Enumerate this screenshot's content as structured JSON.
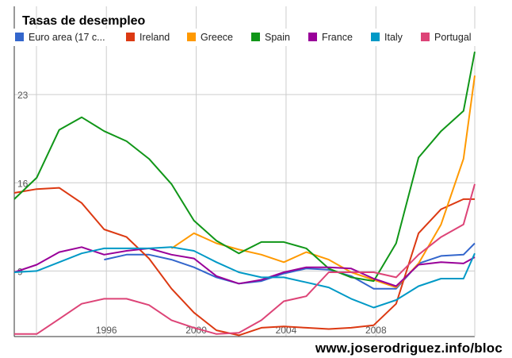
{
  "footer": {
    "url": "www.joserodriguez.info/bloc"
  },
  "chart_data": {
    "type": "line",
    "title": "Tasas de desempleo",
    "xlabel": "",
    "ylabel": "",
    "xlim": [
      1991.9,
      2012.4
    ],
    "ylim": [
      3.8,
      30.0
    ],
    "x_ticks": [
      {
        "value": 1996,
        "label": "1996"
      },
      {
        "value": 2000,
        "label": "2000"
      },
      {
        "value": 2004,
        "label": "2004"
      },
      {
        "value": 2008,
        "label": "2008"
      }
    ],
    "y_ticks": [
      {
        "value": 9,
        "label": "9"
      },
      {
        "value": 16,
        "label": "16"
      },
      {
        "value": 23,
        "label": "23"
      }
    ],
    "grid": true,
    "legend_position": "top",
    "x": [
      1991.9,
      1992.9,
      1993.9,
      1994.9,
      1995.9,
      1996.9,
      1997.9,
      1998.9,
      1999.9,
      2000.9,
      2001.9,
      2002.9,
      2003.9,
      2004.9,
      2005.9,
      2006.9,
      2007.9,
      2008.9,
      2009.9,
      2010.9,
      2011.9,
      2012.4
    ],
    "series": [
      {
        "name": "Euro area (17 c...",
        "color": "#3366cc",
        "values": [
          null,
          null,
          null,
          null,
          9.9,
          10.3,
          10.3,
          9.9,
          9.3,
          8.5,
          8.0,
          8.2,
          8.8,
          9.2,
          9.1,
          8.6,
          7.6,
          7.6,
          9.6,
          10.2,
          10.3,
          11.2
        ]
      },
      {
        "name": "Ireland",
        "color": "#dc3912",
        "values": [
          15.2,
          15.5,
          15.6,
          14.4,
          12.3,
          11.7,
          10.0,
          7.6,
          5.7,
          4.3,
          3.9,
          4.5,
          4.6,
          4.5,
          4.4,
          4.5,
          4.7,
          6.4,
          12.0,
          13.9,
          14.7,
          14.7
        ]
      },
      {
        "name": "Greece",
        "color": "#ff9900",
        "values": [
          null,
          null,
          null,
          null,
          null,
          null,
          null,
          10.8,
          12.0,
          11.2,
          10.7,
          10.3,
          9.7,
          10.5,
          9.9,
          8.9,
          8.3,
          7.7,
          9.6,
          12.7,
          17.9,
          24.5
        ]
      },
      {
        "name": "Spain",
        "color": "#109618",
        "values": [
          14.7,
          16.4,
          20.2,
          21.2,
          20.1,
          19.3,
          17.9,
          15.9,
          13.0,
          11.4,
          10.4,
          11.3,
          11.3,
          10.8,
          9.2,
          8.5,
          8.2,
          11.2,
          18.0,
          20.1,
          21.7,
          26.4
        ]
      },
      {
        "name": "France",
        "color": "#990099",
        "values": [
          8.9,
          9.5,
          10.5,
          10.9,
          10.3,
          10.6,
          10.8,
          10.3,
          10.0,
          8.6,
          8.0,
          8.3,
          8.9,
          9.3,
          9.3,
          9.2,
          8.4,
          7.8,
          9.5,
          9.7,
          9.6,
          10.1
        ]
      },
      {
        "name": "Italy",
        "color": "#0099c6",
        "values": [
          8.9,
          9.0,
          9.7,
          10.4,
          10.8,
          10.8,
          10.8,
          10.9,
          10.6,
          9.7,
          8.9,
          8.5,
          8.5,
          8.1,
          7.7,
          6.8,
          6.1,
          6.7,
          7.8,
          8.4,
          8.4,
          10.4
        ]
      },
      {
        "name": "Portugal",
        "color": "#dd4477",
        "values": [
          4.0,
          4.0,
          5.2,
          6.4,
          6.8,
          6.8,
          6.3,
          5.1,
          4.5,
          4.0,
          4.1,
          5.1,
          6.6,
          7.0,
          8.9,
          8.9,
          8.9,
          8.5,
          10.3,
          11.7,
          12.7,
          15.9
        ]
      }
    ]
  }
}
